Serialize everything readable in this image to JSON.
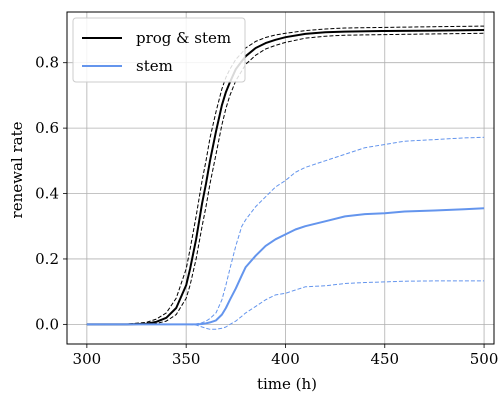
{
  "chart_data": {
    "type": "line",
    "xlabel": "time (h)",
    "ylabel": "renewal rate",
    "xlim": [
      290,
      505
    ],
    "ylim": [
      -0.06,
      0.955
    ],
    "xticks": [
      300,
      350,
      400,
      450,
      500
    ],
    "yticks": [
      0.0,
      0.2,
      0.4,
      0.6,
      0.8
    ],
    "xtick_labels": [
      "300",
      "350",
      "400",
      "450",
      "500"
    ],
    "ytick_labels": [
      "0.0",
      "0.2",
      "0.4",
      "0.6",
      "0.8"
    ],
    "grid": true,
    "legend_position": "top-left",
    "series": [
      {
        "name": "prog & stem",
        "color": "#000000",
        "style": "solid",
        "x": [
          300,
          320,
          330,
          335,
          340,
          345,
          350,
          352,
          355,
          358,
          360,
          362,
          365,
          368,
          370,
          372,
          375,
          378,
          380,
          385,
          390,
          395,
          400,
          410,
          420,
          430,
          450,
          475,
          500
        ],
        "values": [
          0.0,
          0.0,
          0.002,
          0.008,
          0.02,
          0.05,
          0.12,
          0.17,
          0.26,
          0.37,
          0.43,
          0.5,
          0.59,
          0.67,
          0.71,
          0.74,
          0.78,
          0.805,
          0.82,
          0.845,
          0.86,
          0.87,
          0.878,
          0.888,
          0.893,
          0.895,
          0.897,
          0.898,
          0.9
        ]
      },
      {
        "name": "",
        "color": "#000000",
        "style": "dashed",
        "x": [
          300,
          320,
          330,
          335,
          340,
          345,
          350,
          352,
          355,
          358,
          360,
          362,
          365,
          368,
          370,
          372,
          375,
          378,
          380,
          385,
          390,
          395,
          400,
          410,
          420,
          430,
          450,
          475,
          500
        ],
        "values": [
          0.0,
          0.001,
          0.006,
          0.016,
          0.035,
          0.08,
          0.17,
          0.23,
          0.33,
          0.44,
          0.5,
          0.57,
          0.65,
          0.72,
          0.755,
          0.78,
          0.81,
          0.83,
          0.845,
          0.865,
          0.877,
          0.885,
          0.89,
          0.898,
          0.903,
          0.906,
          0.908,
          0.91,
          0.912
        ]
      },
      {
        "name": "",
        "color": "#000000",
        "style": "dashed",
        "x": [
          300,
          320,
          330,
          335,
          340,
          345,
          350,
          352,
          355,
          358,
          360,
          362,
          365,
          368,
          370,
          372,
          375,
          378,
          380,
          385,
          390,
          395,
          400,
          410,
          420,
          430,
          450,
          475,
          500
        ],
        "values": [
          0.0,
          0.0,
          0.0,
          0.003,
          0.01,
          0.03,
          0.08,
          0.12,
          0.2,
          0.3,
          0.36,
          0.43,
          0.52,
          0.61,
          0.66,
          0.7,
          0.745,
          0.775,
          0.795,
          0.823,
          0.842,
          0.853,
          0.862,
          0.875,
          0.881,
          0.884,
          0.886,
          0.888,
          0.89
        ]
      },
      {
        "name": "stem",
        "color": "#6495ed",
        "style": "solid",
        "x": [
          300,
          350,
          355,
          358,
          360,
          362,
          365,
          368,
          370,
          372,
          375,
          378,
          380,
          385,
          390,
          395,
          400,
          405,
          410,
          420,
          430,
          440,
          450,
          460,
          475,
          490,
          500
        ],
        "values": [
          0.0,
          0.0,
          0.0,
          0.001,
          0.003,
          0.006,
          0.012,
          0.03,
          0.05,
          0.075,
          0.11,
          0.15,
          0.175,
          0.21,
          0.24,
          0.26,
          0.275,
          0.29,
          0.3,
          0.315,
          0.33,
          0.337,
          0.34,
          0.345,
          0.348,
          0.352,
          0.355
        ]
      },
      {
        "name": "",
        "color": "#6495ed",
        "style": "dashed",
        "x": [
          300,
          350,
          355,
          358,
          360,
          362,
          365,
          368,
          370,
          372,
          375,
          378,
          380,
          385,
          390,
          395,
          400,
          405,
          410,
          420,
          430,
          440,
          450,
          460,
          475,
          490,
          500
        ],
        "values": [
          0.0,
          0.0,
          0.001,
          0.005,
          0.01,
          0.018,
          0.035,
          0.075,
          0.12,
          0.17,
          0.24,
          0.3,
          0.32,
          0.36,
          0.39,
          0.42,
          0.44,
          0.465,
          0.48,
          0.5,
          0.52,
          0.54,
          0.55,
          0.56,
          0.565,
          0.57,
          0.572
        ]
      },
      {
        "name": "",
        "color": "#6495ed",
        "style": "dashed",
        "x": [
          300,
          350,
          355,
          358,
          360,
          362,
          365,
          368,
          370,
          372,
          375,
          378,
          380,
          385,
          390,
          395,
          400,
          405,
          410,
          420,
          430,
          440,
          450,
          460,
          475,
          490,
          500
        ],
        "values": [
          0.0,
          0.0,
          -0.002,
          -0.008,
          -0.012,
          -0.015,
          -0.015,
          -0.012,
          -0.008,
          0.0,
          0.01,
          0.025,
          0.035,
          0.055,
          0.075,
          0.09,
          0.095,
          0.105,
          0.115,
          0.118,
          0.125,
          0.128,
          0.13,
          0.132,
          0.133,
          0.133,
          0.133
        ]
      }
    ]
  }
}
